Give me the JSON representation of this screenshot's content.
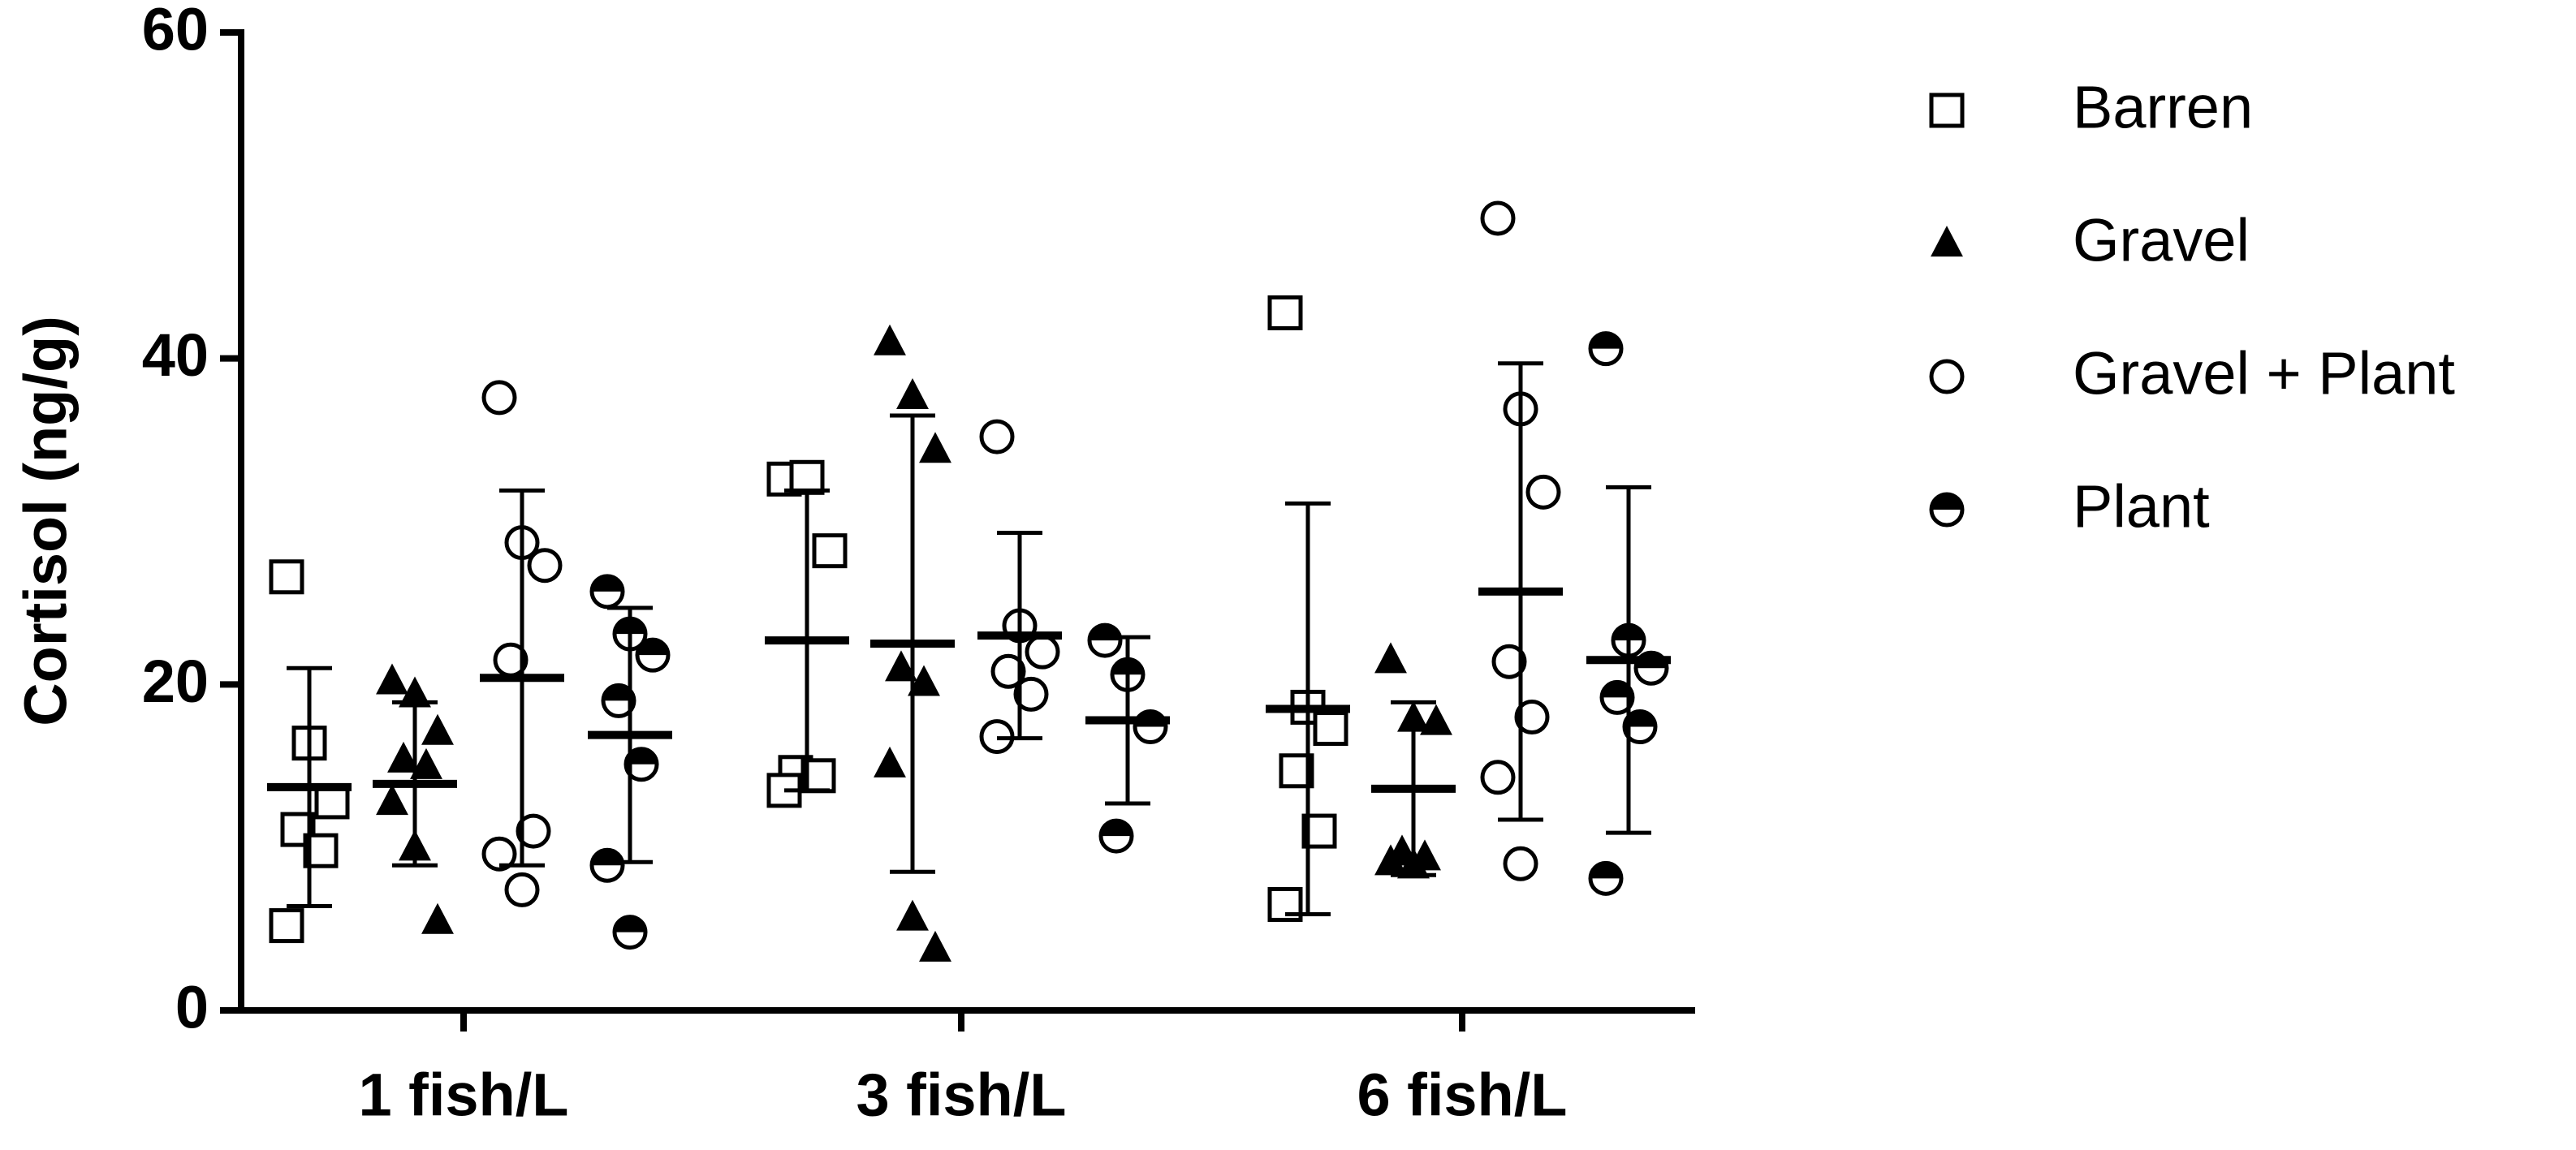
{
  "chart_data": {
    "type": "scatter-mean-sd",
    "y_label": "Cortisol (ng/g)",
    "categories": [
      "1 fish/L",
      "3 fish/L",
      "6 fish/L"
    ],
    "ylim": [
      0,
      60
    ],
    "yticks": [
      0,
      20,
      40,
      60
    ],
    "series": [
      {
        "name": "Barren",
        "marker": "square",
        "color": "#000000",
        "points": [
          [
            26.6,
            16.4,
            12.8,
            11.1,
            9.8,
            5.2
          ],
          [
            32.6,
            32.7,
            28.2,
            14.6,
            14.4,
            13.5
          ],
          [
            42.8,
            18.6,
            17.3,
            14.7,
            11.0,
            6.5
          ]
        ],
        "mean": [
          13.7,
          22.7,
          18.5
        ],
        "sd": [
          7.3,
          9.2,
          12.6
        ]
      },
      {
        "name": "Gravel",
        "marker": "triangle",
        "color": "#000000",
        "points": [
          [
            20.2,
            19.4,
            17.1,
            15.4,
            15.0,
            12.8,
            10.0,
            5.5
          ],
          [
            41.0,
            37.7,
            34.4,
            21.0,
            20.1,
            15.1,
            5.7,
            3.8
          ],
          [
            21.5,
            17.9,
            17.7,
            9.7,
            9.4,
            9.1,
            8.9
          ]
        ],
        "mean": [
          13.9,
          22.5,
          13.6
        ],
        "sd": [
          5.0,
          14.0,
          5.3
        ]
      },
      {
        "name": "Gravel + Plant",
        "marker": "circle",
        "color": "#000000",
        "points": [
          [
            37.6,
            28.7,
            27.3,
            21.5,
            11.0,
            9.6,
            7.4
          ],
          [
            35.2,
            23.6,
            22.0,
            20.8,
            19.4,
            16.8
          ],
          [
            48.6,
            36.9,
            31.8,
            21.4,
            18.0,
            14.3,
            9.0
          ]
        ],
        "mean": [
          20.4,
          23.0,
          25.7
        ],
        "sd": [
          11.5,
          6.3,
          14.0
        ]
      },
      {
        "name": "Plant",
        "marker": "half-circle",
        "color": "#000000",
        "points": [
          [
            25.7,
            23.1,
            21.8,
            19.0,
            15.1,
            8.9,
            4.8
          ],
          [
            22.7,
            20.6,
            17.4,
            10.7
          ],
          [
            40.6,
            22.7,
            21.0,
            19.2,
            17.4,
            8.1
          ]
        ],
        "mean": [
          16.9,
          17.8,
          21.5
        ],
        "sd": [
          7.8,
          5.1,
          10.6
        ]
      }
    ]
  }
}
